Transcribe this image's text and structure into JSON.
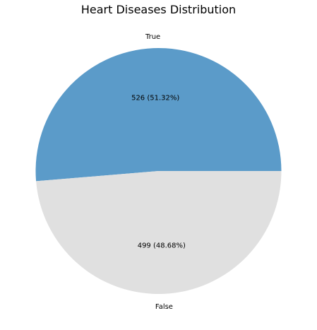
{
  "chart_data": {
    "type": "pie",
    "title": "Heart Diseases Distribution",
    "slices": [
      {
        "label": "True",
        "value": 526,
        "percent": 51.32,
        "display": "526 (51.32%)",
        "color": "#5b9bc9"
      },
      {
        "label": "False",
        "value": 499,
        "percent": 48.68,
        "display": "499 (48.68%)",
        "color": "#e0e0e0"
      }
    ],
    "start_angle_deg": 0,
    "direction": "counterclockwise",
    "legend": "none"
  }
}
